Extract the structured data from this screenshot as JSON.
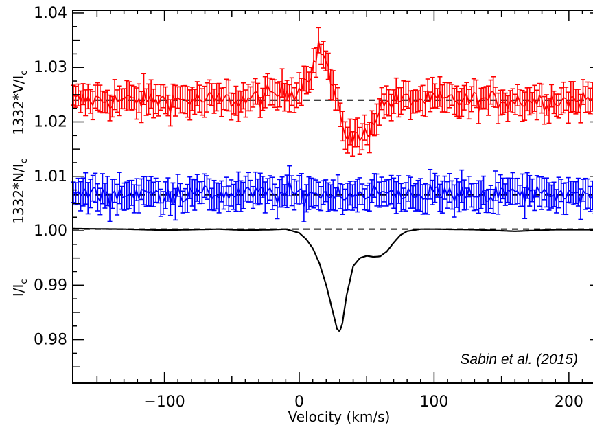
{
  "chart_data": {
    "type": "line",
    "title": "",
    "xlabel": "Velocity (km/s)",
    "ylabel_segments": [
      "I/I",
      "1332*N/I",
      "1332*V/I"
    ],
    "ylabel_subscript": "c",
    "annotation": "Sabin et al. (2015)",
    "xlim": [
      -168,
      224
    ],
    "ylim": [
      0.972,
      1.0405
    ],
    "x_ticks": [
      -100,
      0,
      100,
      200
    ],
    "x_tick_labels": [
      "−100",
      "0",
      "100",
      "200"
    ],
    "y_ticks": [
      0.98,
      0.99,
      1.0,
      1.01,
      1.02,
      1.03,
      1.04
    ],
    "y_tick_labels": [
      "0.98",
      "0.99",
      "1.00",
      "1.01",
      "1.02",
      "1.03",
      "1.04"
    ],
    "grid": false,
    "reference_lines": [
      1.0003,
      1.0066,
      1.024
    ],
    "series": [
      {
        "role": "Stokes V",
        "color": "#ff0000",
        "style": "errorbar",
        "baseline": 1.024,
        "noise": 0.0009,
        "error": 0.0024,
        "x": [
          -170,
          -40,
          0,
          10,
          15,
          20,
          25,
          30,
          35,
          40,
          45,
          50,
          55,
          60,
          70,
          230
        ],
        "y": [
          1.024,
          1.024,
          1.026,
          1.03,
          1.034,
          1.031,
          1.026,
          1.021,
          1.018,
          1.017,
          1.017,
          1.018,
          1.02,
          1.023,
          1.024,
          1.024
        ]
      },
      {
        "role": "Null N",
        "color": "#0000ff",
        "style": "errorbar",
        "baseline": 1.0068,
        "noise": 0.0009,
        "error": 0.0025,
        "x": [
          -170,
          230
        ],
        "y": [
          1.0068,
          1.0068
        ]
      },
      {
        "role": "Stokes I",
        "color": "#000000",
        "style": "line",
        "x": [
          -170,
          -130,
          -100,
          -60,
          -40,
          -20,
          -10,
          0,
          5,
          10,
          15,
          20,
          25,
          28,
          30,
          32,
          35,
          40,
          45,
          50,
          55,
          60,
          65,
          70,
          75,
          80,
          90,
          100,
          130,
          160,
          190,
          230
        ],
        "y": [
          1.0004,
          1.0003,
          1.0001,
          1.0003,
          1.0001,
          1.0002,
          1.0003,
          0.9996,
          0.9985,
          0.9968,
          0.994,
          0.99,
          0.985,
          0.982,
          0.9815,
          0.983,
          0.988,
          0.9935,
          0.995,
          0.9954,
          0.9952,
          0.9953,
          0.9962,
          0.9978,
          0.9992,
          0.9999,
          1.0003,
          1.0003,
          1.0002,
          0.9999,
          1.0002,
          1.0002
        ]
      }
    ]
  }
}
